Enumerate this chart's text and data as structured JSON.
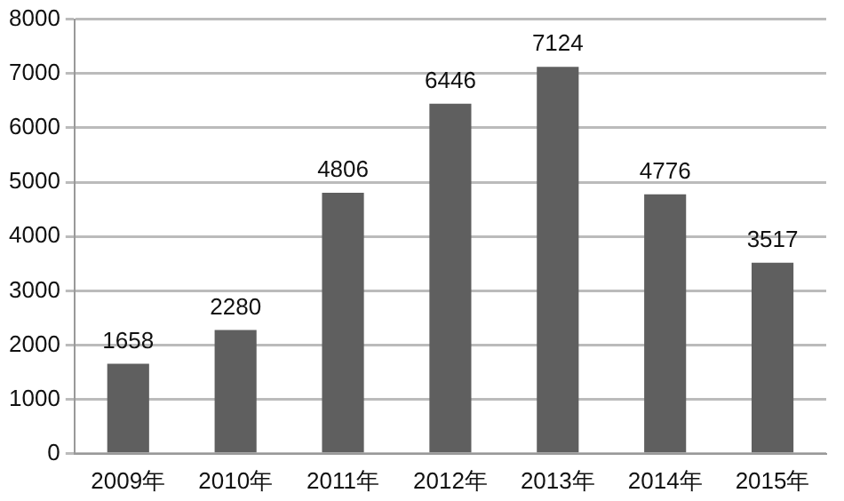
{
  "chart_data": {
    "type": "bar",
    "categories": [
      "2009年",
      "2010年",
      "2011年",
      "2012年",
      "2013年",
      "2014年",
      "2015年"
    ],
    "values": [
      1658,
      2280,
      4806,
      6446,
      7124,
      4776,
      3517
    ],
    "color": "#5f5f5f",
    "ylim": [
      0,
      8000
    ],
    "yticks": [
      0,
      1000,
      2000,
      3000,
      4000,
      5000,
      6000,
      7000,
      8000
    ],
    "grid": "y",
    "legend": false,
    "data_labels": true
  }
}
